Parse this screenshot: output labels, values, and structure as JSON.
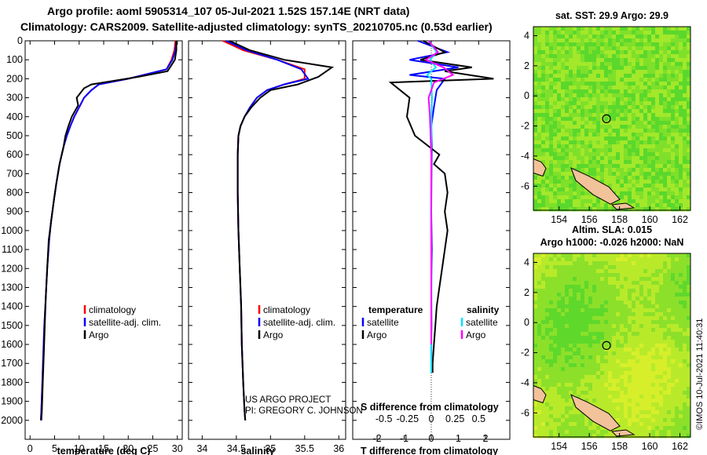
{
  "title": {
    "line1": "Argo profile: aoml 5905314_107 05-Jul-2021 1.52S 157.14E (NRT data)",
    "line2": "Climatology: CARS2009. Satellite-adjusted climatology: synTS_20210705.nc (0.53d earlier)"
  },
  "credits": {
    "project": "US ARGO PROJECT",
    "pi": "PI: GREGORY C. JOHNSON",
    "imos": "©IMOS 10-Jul-2021 11:40:31"
  },
  "colors": {
    "climatology": "#ff0000",
    "satellite": "#0000ff",
    "argo": "#000000",
    "sal_satellite": "#00e0ff",
    "sal_argo": "#ff00ff"
  },
  "chart_data": [
    {
      "type": "line",
      "name": "temperature",
      "xlabel": "temperature (deg C)",
      "ylabel": "depth",
      "xlim": [
        -1,
        31
      ],
      "ylim": [
        2100,
        0
      ],
      "xticks": [
        0,
        5,
        10,
        15,
        20,
        25,
        30
      ],
      "yticks": [
        0,
        100,
        200,
        300,
        400,
        500,
        600,
        700,
        800,
        900,
        1000,
        1100,
        1200,
        1300,
        1400,
        1500,
        1600,
        1700,
        1800,
        1900,
        2000
      ],
      "legend": [
        "climatology",
        "satellite-adj. clim.",
        "Argo"
      ],
      "series": [
        {
          "name": "climatology",
          "color": "#ff0000",
          "x": [
            29.6,
            29.4,
            28.8,
            27.8,
            20,
            14,
            12.5,
            11,
            10,
            9,
            8.2,
            7.5,
            6.8,
            6,
            5.3,
            4.8,
            4.3,
            3.9,
            3.5,
            3.2,
            2.9,
            2.7,
            2.5,
            2.3,
            2.2
          ],
          "y": [
            0,
            50,
            100,
            150,
            200,
            230,
            260,
            300,
            350,
            400,
            450,
            500,
            560,
            650,
            760,
            850,
            950,
            1050,
            1200,
            1350,
            1500,
            1650,
            1800,
            1950,
            2000
          ]
        },
        {
          "name": "satellite-adj. clim.",
          "color": "#0000ff",
          "x": [
            29.8,
            29.6,
            29,
            27.8,
            20,
            14,
            12.5,
            11,
            10,
            9,
            8.2,
            7.5,
            6.8,
            6,
            5.3,
            4.8,
            4.3,
            3.9,
            3.5,
            3.2,
            2.9,
            2.7,
            2.5,
            2.3,
            2.2
          ],
          "y": [
            0,
            50,
            100,
            150,
            200,
            230,
            260,
            300,
            350,
            400,
            450,
            500,
            560,
            650,
            760,
            850,
            950,
            1050,
            1200,
            1350,
            1500,
            1650,
            1800,
            1950,
            2000
          ]
        },
        {
          "name": "Argo",
          "color": "#000000",
          "x": [
            29.8,
            29.8,
            29.5,
            28,
            22,
            12.5,
            11,
            9.5,
            9.8,
            8.5,
            7.8,
            7.2,
            6.8,
            6,
            5.3,
            4.8,
            4.3,
            3.8,
            3.5,
            3.2,
            3,
            2.8,
            2.6,
            2.4,
            2.3
          ],
          "y": [
            0,
            50,
            100,
            160,
            190,
            230,
            250,
            300,
            340,
            400,
            450,
            500,
            560,
            650,
            760,
            850,
            950,
            1050,
            1200,
            1350,
            1500,
            1650,
            1800,
            1950,
            2000
          ]
        }
      ]
    },
    {
      "type": "line",
      "name": "salinity",
      "xlabel": "salinity",
      "xlim": [
        33.8,
        36.1
      ],
      "ylim": [
        2100,
        0
      ],
      "xticks": [
        34,
        34.5,
        35,
        35.5,
        36
      ],
      "legend": [
        "climatology",
        "satellite-adj. clim.",
        "Argo"
      ],
      "series": [
        {
          "name": "climatology",
          "color": "#ff0000",
          "x": [
            34.3,
            34.6,
            35.1,
            35.5,
            35.5,
            35.2,
            34.95,
            34.8,
            34.7,
            34.62,
            34.56,
            34.53,
            34.52,
            34.52,
            34.53,
            34.55,
            34.57,
            34.58,
            34.6,
            34.62,
            34.63
          ],
          "y": [
            0,
            50,
            100,
            150,
            200,
            230,
            260,
            300,
            350,
            400,
            450,
            500,
            600,
            800,
            1000,
            1200,
            1400,
            1600,
            1800,
            1950,
            2000
          ]
        },
        {
          "name": "satellite-adj. clim.",
          "color": "#0000ff",
          "x": [
            34.35,
            34.65,
            35.1,
            35.45,
            35.55,
            35.2,
            34.95,
            34.8,
            34.7,
            34.62,
            34.56,
            34.53,
            34.52,
            34.52,
            34.53,
            34.55,
            34.57,
            34.58,
            34.6,
            34.62,
            34.63
          ],
          "y": [
            0,
            50,
            100,
            150,
            200,
            230,
            260,
            300,
            350,
            400,
            450,
            500,
            600,
            800,
            1000,
            1200,
            1400,
            1600,
            1800,
            1950,
            2000
          ]
        },
        {
          "name": "Argo",
          "color": "#000000",
          "x": [
            34.4,
            34.7,
            35.2,
            35.9,
            35.7,
            35.4,
            35,
            34.85,
            34.72,
            34.62,
            34.56,
            34.53,
            34.52,
            34.52,
            34.53,
            34.55,
            34.57,
            34.58,
            34.6,
            34.62,
            34.63
          ],
          "y": [
            0,
            50,
            100,
            140,
            190,
            230,
            260,
            300,
            350,
            400,
            450,
            500,
            600,
            800,
            1000,
            1200,
            1400,
            1600,
            1800,
            1950,
            2000
          ]
        }
      ]
    },
    {
      "type": "line",
      "name": "difference",
      "xlabel": "T difference from climatology",
      "xlabel2": "S difference from climatology",
      "xlim": [
        -2.9,
        2.9
      ],
      "ylim": [
        2100,
        0
      ],
      "xticks_T": [
        -2,
        -1,
        0,
        1,
        2
      ],
      "xticks_S": [
        -0.5,
        -0.25,
        0,
        0.25,
        0.5
      ],
      "legend": {
        "temperature": "temperature",
        "salinity": "salinity",
        "satellite": "satellite",
        "argo": "Argo"
      },
      "series": [
        {
          "name": "temperature satellite",
          "color": "#0000ff",
          "x": [
            -0.5,
            0.6,
            -0.8,
            1,
            -0.8,
            0.5,
            0.2,
            0.1,
            0,
            0.02,
            0.01,
            0,
            0.02,
            0,
            0.01,
            0,
            0.01,
            0
          ],
          "y": [
            0,
            60,
            100,
            140,
            180,
            200,
            260,
            350,
            450,
            550,
            700,
            900,
            1100,
            1300,
            1500,
            1600,
            1700,
            1750
          ]
        },
        {
          "name": "temperature Argo",
          "color": "#000000",
          "x": [
            -0.3,
            0.5,
            -0.4,
            1.5,
            0.5,
            2.3,
            -1.5,
            -0.8,
            -0.9,
            -0.6,
            0.3,
            0.1,
            0.5,
            0.6,
            0.5,
            0.6,
            0.4,
            0.3,
            0.2,
            0.15,
            0.1,
            0.05,
            0.05
          ],
          "y": [
            0,
            60,
            100,
            140,
            160,
            200,
            220,
            300,
            400,
            500,
            600,
            650,
            700,
            800,
            900,
            1000,
            1200,
            1300,
            1400,
            1500,
            1600,
            1700,
            1750
          ]
        },
        {
          "name": "salinity satellite",
          "color": "#00e0ff",
          "x": [
            -0.2,
            0.4,
            -0.1,
            0.35,
            -0.3,
            0,
            0.05,
            0.02,
            0.01,
            0,
            -0.02,
            0,
            0.02,
            0,
            0.01,
            0
          ],
          "y": [
            0,
            60,
            100,
            140,
            180,
            200,
            300,
            400,
            500,
            700,
            900,
            1100,
            1300,
            1500,
            1650,
            1750
          ]
        },
        {
          "name": "salinity Argo",
          "color": "#ff00ff",
          "x": [
            -0.2,
            0.5,
            -0.4,
            0.9,
            1.6,
            0.2,
            -0.2,
            -0.1,
            -0.05,
            0,
            0,
            0,
            0,
            0,
            0,
            0
          ],
          "y": [
            0,
            60,
            100,
            140,
            180,
            220,
            300,
            400,
            500,
            600,
            700,
            800,
            1000,
            1200,
            1400,
            1600
          ]
        }
      ]
    },
    {
      "type": "heatmap",
      "name": "sst-map",
      "title": "sat. SST: 29.9 Argo: 29.9",
      "xticks": [
        154,
        156,
        158,
        160,
        162
      ],
      "yticks": [
        4,
        2,
        0,
        -2,
        -4,
        -6
      ],
      "xlim": [
        152.3,
        162.7
      ],
      "ylim": [
        -7.6,
        4.6
      ],
      "profile_lon": 157.14,
      "profile_lat": -1.52
    },
    {
      "type": "heatmap",
      "name": "sla-map",
      "title": "Altim. SLA: 0.015",
      "subtitle": "Argo h1000: -0.026 h2000: NaN",
      "xticks": [
        154,
        156,
        158,
        160,
        162
      ],
      "yticks": [
        4,
        2,
        0,
        -2,
        -4,
        -6
      ],
      "xlim": [
        152.3,
        162.7
      ],
      "ylim": [
        -7.6,
        4.6
      ],
      "profile_lon": 157.14,
      "profile_lat": -1.52
    }
  ]
}
